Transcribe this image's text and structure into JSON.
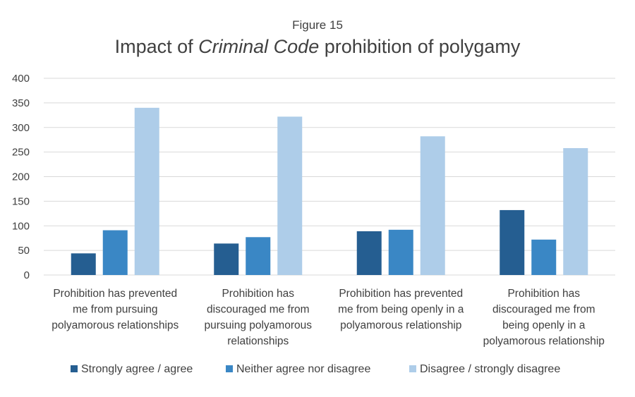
{
  "chart_data": {
    "type": "bar",
    "supertitle": "Figure 15",
    "title_parts": [
      {
        "text": "Impact of ",
        "italic": false
      },
      {
        "text": "Criminal Code",
        "italic": true
      },
      {
        "text": " prohibition of polygamy",
        "italic": false
      }
    ],
    "categories": [
      [
        "Prohibition has prevented",
        "me from pursuing",
        "polyamorous relationships"
      ],
      [
        "Prohibition has",
        "discouraged me from",
        "pursuing polyamorous",
        "relationships"
      ],
      [
        "Prohibition has prevented",
        "me from being openly in a",
        "polyamorous relationship"
      ],
      [
        "Prohibition has",
        "discouraged me from",
        "being openly in a",
        "polyamorous relationship"
      ]
    ],
    "series": [
      {
        "name": "Strongly agree / agree",
        "color": "#255e91",
        "values": [
          44,
          64,
          89,
          132
        ]
      },
      {
        "name": "Neither agree nor disagree",
        "color": "#3a87c5",
        "values": [
          91,
          77,
          92,
          72
        ]
      },
      {
        "name": "Disagree / strongly disagree",
        "color": "#aecde9",
        "values": [
          340,
          322,
          282,
          258
        ]
      }
    ],
    "ylim": [
      0,
      400
    ],
    "yticks": [
      0,
      50,
      100,
      150,
      200,
      250,
      300,
      350,
      400
    ],
    "grid": true,
    "legend_position": "bottom"
  }
}
